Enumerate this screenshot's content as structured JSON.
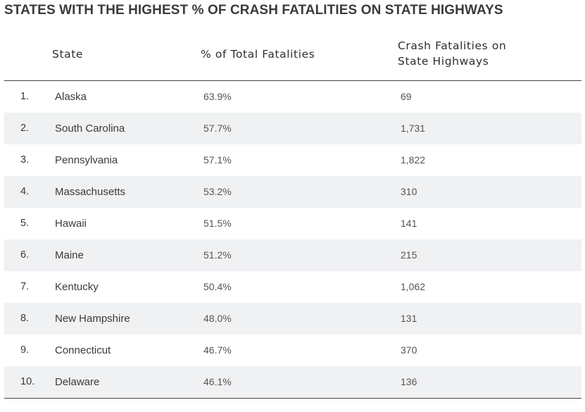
{
  "title": "STATES WITH THE HIGHEST % OF CRASH FATALITIES ON STATE HIGHWAYS",
  "headers": {
    "state": "State",
    "pct_total": "% of Total Fatalities",
    "crash_line1": "Crash Fatalities on",
    "crash_line2": "State Highways"
  },
  "rows": [
    {
      "rank": "1.",
      "state": "Alaska",
      "pct": "63.9%",
      "crash": "69"
    },
    {
      "rank": "2.",
      "state": "South Carolina",
      "pct": "57.7%",
      "crash": "1,731"
    },
    {
      "rank": "3.",
      "state": "Pennsylvania",
      "pct": "57.1%",
      "crash": "1,822"
    },
    {
      "rank": "4.",
      "state": "Massachusetts",
      "pct": "53.2%",
      "crash": "310"
    },
    {
      "rank": "5.",
      "state": "Hawaii",
      "pct": "51.5%",
      "crash": "141"
    },
    {
      "rank": "6.",
      "state": "Maine",
      "pct": "51.2%",
      "crash": "215"
    },
    {
      "rank": "7.",
      "state": "Kentucky",
      "pct": "50.4%",
      "crash": "1,062"
    },
    {
      "rank": "8.",
      "state": "New Hampshire",
      "pct": "48.0%",
      "crash": "131"
    },
    {
      "rank": "9.",
      "state": "Connecticut",
      "pct": "46.7%",
      "crash": "370"
    },
    {
      "rank": "10.",
      "state": "Delaware",
      "pct": "46.1%",
      "crash": "136"
    }
  ],
  "colors": {
    "row_shade": "#f0f1f3",
    "rule": "#444444",
    "title": "#3b3b3b"
  }
}
